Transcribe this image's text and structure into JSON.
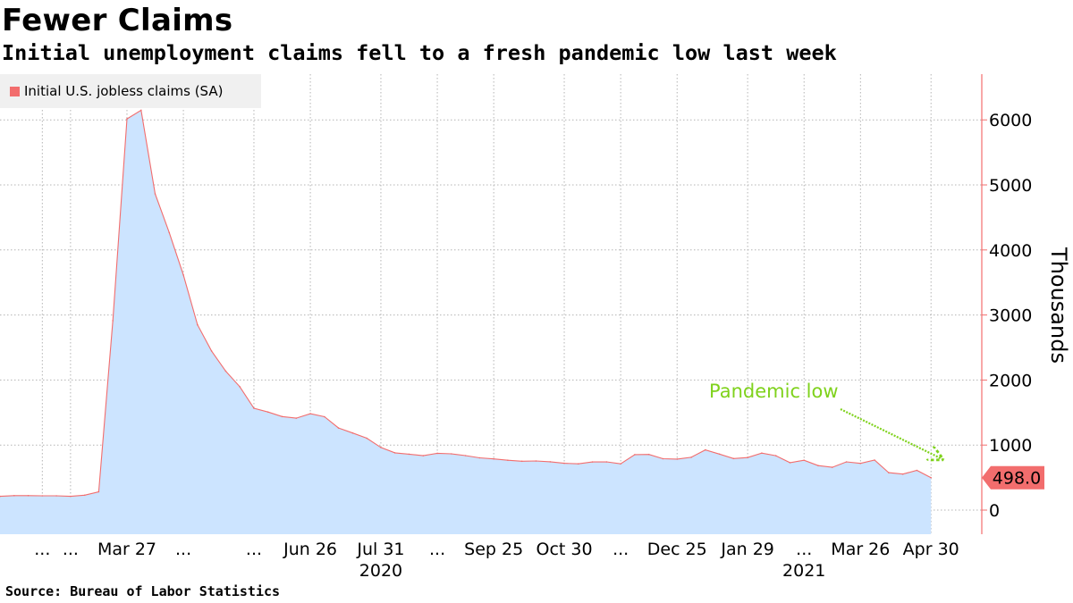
{
  "header": {
    "title": "Fewer Claims",
    "subtitle": "Initial unemployment claims fell to a fresh pandemic low last week"
  },
  "footer": {
    "source": "Source: Bureau of Labor Statistics"
  },
  "colors": {
    "line": "#f26d6d",
    "fill": "#cce4ff",
    "annotation": "#7fd21c",
    "grid": "#b4b4b4",
    "axis": "#f26d6d"
  },
  "chart_data": {
    "type": "area",
    "legend": {
      "label": "Initial U.S. jobless claims (SA)",
      "position": "top-left"
    },
    "ylabel": "Thousands",
    "xlabel": "",
    "ylim": [
      -380,
      6800
    ],
    "y_ticks": [
      0,
      1000,
      2000,
      3000,
      4000,
      5000,
      6000
    ],
    "grid": true,
    "x_ticks": [
      {
        "label": "...",
        "x": -4
      },
      {
        "label": "...",
        "x": -2
      },
      {
        "label": "Mar 27",
        "x": 2
      },
      {
        "label": "...",
        "x": 6
      },
      {
        "label": "...",
        "x": 11
      },
      {
        "label": "Jun 26",
        "x": 15
      },
      {
        "label": "Jul 31",
        "x": 20
      },
      {
        "label": "...",
        "x": 24
      },
      {
        "label": "Sep 25",
        "x": 28
      },
      {
        "label": "Oct 30",
        "x": 33
      },
      {
        "label": "...",
        "x": 37
      },
      {
        "label": "Dec 25",
        "x": 41
      },
      {
        "label": "Jan 29",
        "x": 46
      },
      {
        "label": "...",
        "x": 50
      },
      {
        "label": "Mar 26",
        "x": 54
      },
      {
        "label": "Apr 30",
        "x": 59
      }
    ],
    "year_labels": [
      {
        "label": "2020",
        "x": 20
      },
      {
        "label": "2021",
        "x": 50
      }
    ],
    "x_range": [
      -7,
      60
    ],
    "series": [
      {
        "name": "Initial U.S. jobless claims (SA)",
        "x": [
          -7,
          -6,
          -5,
          -4,
          -3,
          -2,
          -1,
          0,
          1,
          2,
          3,
          4,
          5,
          6,
          7,
          8,
          9,
          10,
          11,
          12,
          13,
          14,
          15,
          16,
          17,
          18,
          19,
          20,
          21,
          22,
          23,
          24,
          25,
          26,
          27,
          28,
          29,
          30,
          31,
          32,
          33,
          34,
          35,
          36,
          37,
          38,
          39,
          40,
          41,
          42,
          43,
          44,
          45,
          46,
          47,
          48,
          49,
          50,
          51,
          52,
          53,
          54,
          55,
          56,
          57,
          58,
          59
        ],
        "values": [
          212,
          222,
          222,
          220,
          220,
          211,
          230,
          282,
          2914,
          6015,
          6149,
          4862,
          4267,
          3615,
          2849,
          2446,
          2137,
          1897,
          1566,
          1508,
          1438,
          1413,
          1482,
          1435,
          1263,
          1186,
          1106,
          963,
          881,
          860,
          837,
          873,
          866,
          838,
          804,
          787,
          767,
          751,
          755,
          743,
          720,
          711,
          740,
          742,
          712,
          853,
          856,
          790,
          784,
          812,
          926,
          861,
          793,
          808,
          877,
          837,
          730,
          766,
          684,
          658,
          742,
          719,
          769,
          576,
          553,
          611,
          498
        ]
      }
    ],
    "last_value_label": "498.0",
    "annotation": {
      "text": "Pandemic low"
    }
  }
}
